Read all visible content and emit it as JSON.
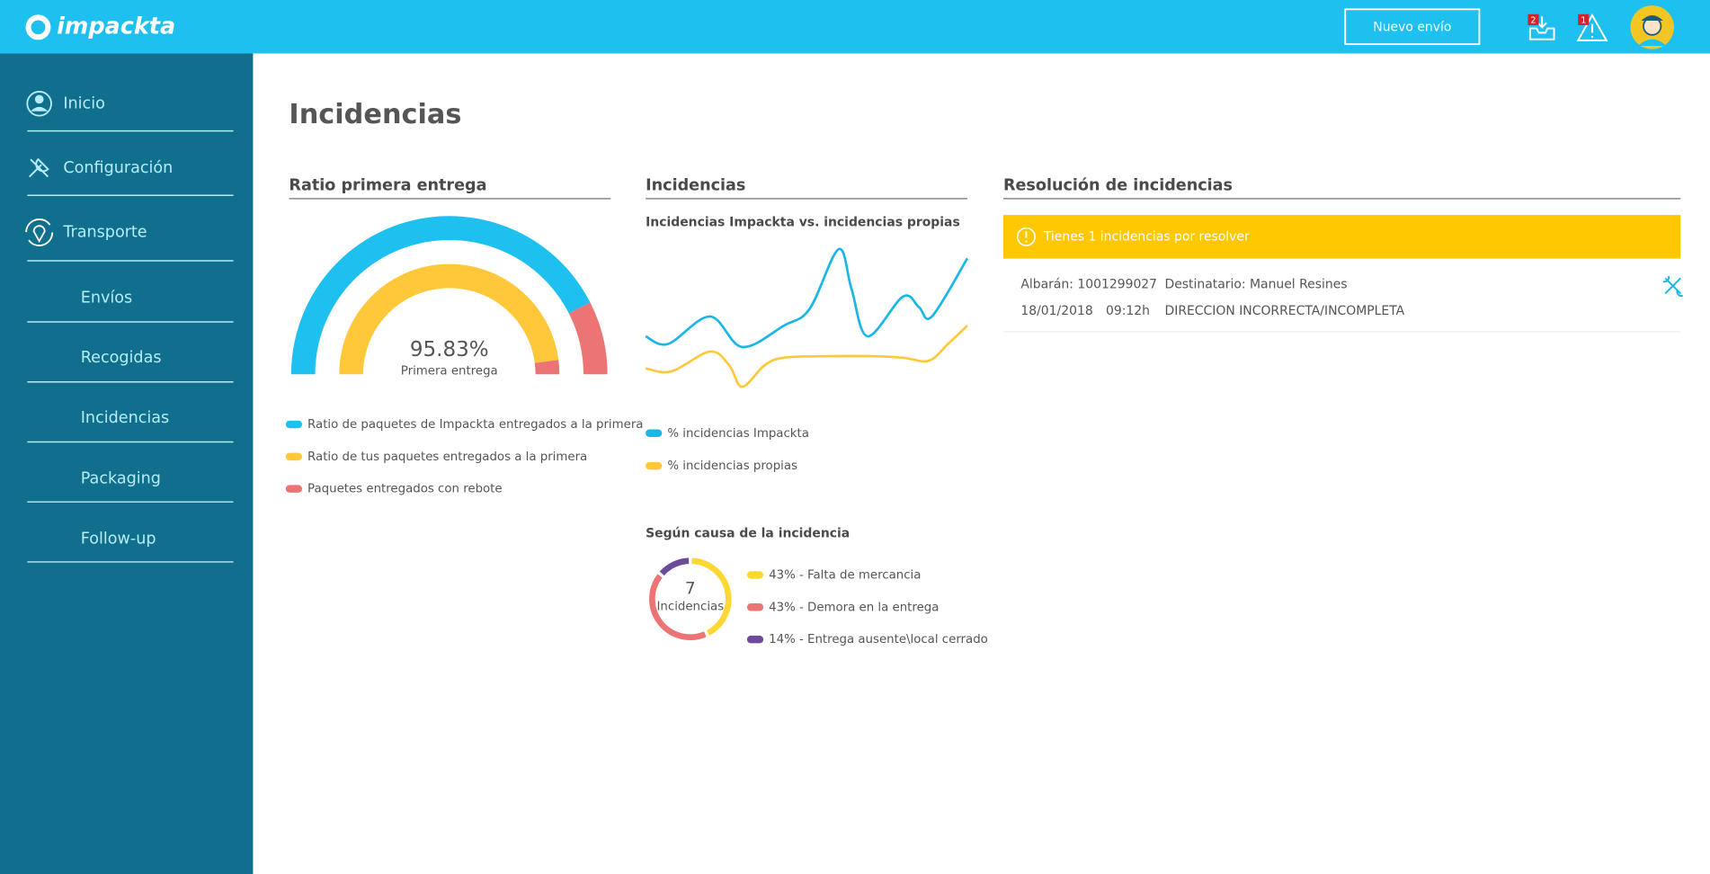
{
  "header": {
    "logo": "impackta",
    "button": "Nuevo envío",
    "badges": [
      2,
      1
    ]
  },
  "sidebar": [
    "Inicio",
    "Configuración",
    "Transporte",
    "Envíos",
    "Recogidas",
    "Incidencias",
    "Packaging",
    "Follow-up"
  ],
  "page_title": "Incidencias",
  "chart_data": [
    {
      "type": "gauge",
      "title": "Ratio primera entrega",
      "rings": [
        {
          "values": [
            85,
            15
          ],
          "colors": [
            "#1ec0f0",
            "#ec7474"
          ]
        },
        {
          "values": [
            95.83,
            4.17
          ],
          "colors": [
            "#ffc83a",
            "#ec7474"
          ]
        }
      ],
      "value_label": "95.83%",
      "caption": "Primera entrega",
      "series": [
        {
          "name": "Ratio de paquetes de Impackta entregados a la primera",
          "color": "#1ec0f0"
        },
        {
          "name": "Ratio de tus paquetes entregados a la primera",
          "color": "#ffc83a"
        },
        {
          "name": "Paquetes entregados con rebote",
          "color": "#ec7474"
        }
      ]
    },
    {
      "type": "line",
      "title": "Incidencias",
      "subtitle": "Incidencias Impackta vs. incidencias propias",
      "xlim": [
        0,
        100
      ],
      "ylim": [
        0,
        100
      ],
      "series": [
        {
          "name": "% incidencias Impackta",
          "color": "#1ab6e6",
          "x": [
            0,
            7,
            20,
            30,
            43,
            51,
            60,
            64,
            69,
            80,
            85,
            89,
            100
          ],
          "values": [
            37,
            32,
            50,
            30,
            44,
            55,
            94,
            68,
            37,
            63,
            56,
            50,
            88
          ]
        },
        {
          "name": "% incidencias propias",
          "color": "#ffc83a",
          "x": [
            0,
            8,
            20,
            26,
            30,
            37,
            43,
            57,
            70,
            80,
            88,
            94,
            100
          ],
          "values": [
            16,
            14,
            27,
            18,
            4,
            18,
            23,
            24,
            24,
            23,
            21,
            32,
            44
          ]
        }
      ]
    },
    {
      "type": "donut",
      "title": "Según causa de la incidencia",
      "total": 7,
      "total_caption": "Incidencias",
      "categories": [
        "43% - Falta de mercancia",
        "43% - Demora en la entrega",
        "14% - Entrega ausente\\local cerrado"
      ],
      "values": [
        43,
        43,
        14
      ],
      "colors": [
        "#fdd835",
        "#ec7474",
        "#6e4a9a"
      ]
    }
  ],
  "resolution": {
    "title": "Resolución de incidencias",
    "alert": "Tienes 1 incidencias por resolver",
    "rows": [
      [
        "Albarán: 1001299027",
        "Destinatario: Manuel Resines",
        "18/01/2018",
        "09:12h",
        "DIRECCION INCORRECTA/INCOMPLETA"
      ]
    ]
  }
}
